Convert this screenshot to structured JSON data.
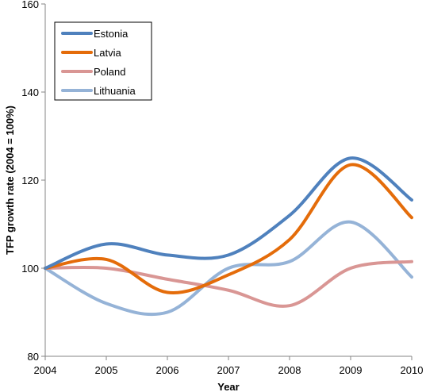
{
  "chart_data": {
    "type": "line",
    "title": "",
    "xlabel": "Year",
    "ylabel": "TFP growth rate (2004 = 100%)",
    "x": [
      2004,
      2005,
      2006,
      2007,
      2008,
      2009,
      2010
    ],
    "xlim": [
      2004,
      2010
    ],
    "ylim": [
      80,
      160
    ],
    "yticks": [
      80,
      100,
      120,
      140,
      160
    ],
    "grid": false,
    "smooth": true,
    "legend_position": "top-left",
    "series": [
      {
        "name": "Estonia",
        "color": "#4F81BD",
        "values": [
          100,
          105.5,
          103,
          103,
          112,
          125,
          115.5
        ]
      },
      {
        "name": "Latvia",
        "color": "#E46C0A",
        "values": [
          100,
          102,
          94.5,
          98.5,
          106.5,
          123.5,
          111.5
        ]
      },
      {
        "name": "Poland",
        "color": "#D99694",
        "values": [
          100,
          100,
          97.5,
          95,
          91.5,
          100,
          101.5
        ]
      },
      {
        "name": "Lithuania",
        "color": "#95B3D7",
        "values": [
          100,
          92,
          90,
          100,
          101.5,
          110.5,
          98
        ]
      }
    ]
  }
}
